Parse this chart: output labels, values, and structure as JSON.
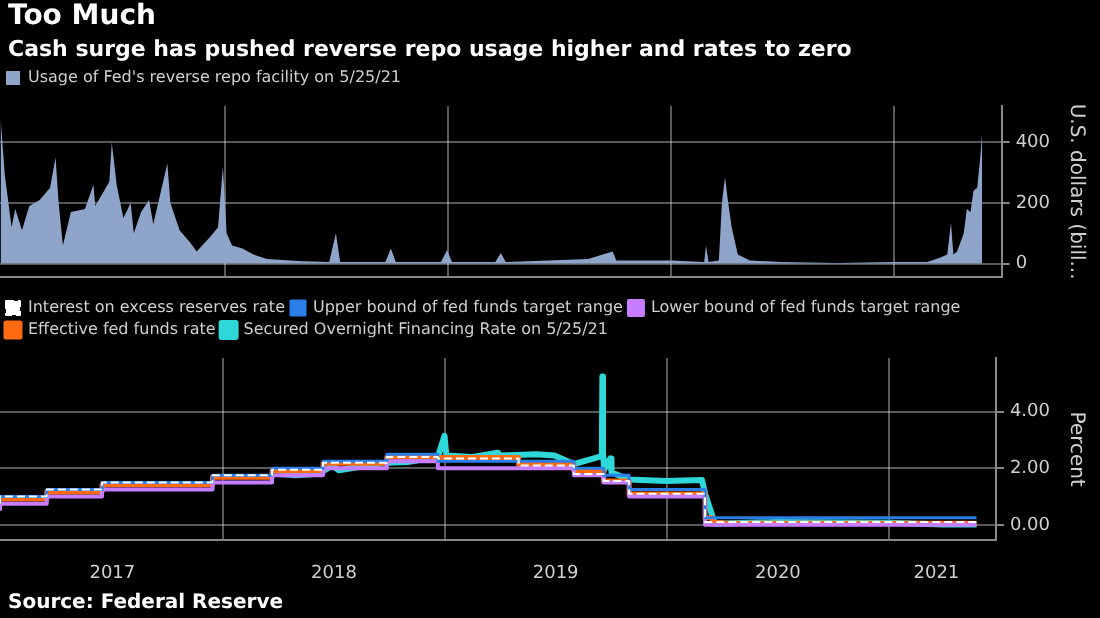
{
  "chart_data": [
    {
      "type": "area",
      "title": "Too Much",
      "subtitle": "Cash surge has pushed reverse repo usage higher and rates to zero",
      "ylabel": "U.S. dollars (bill...",
      "legend": "top left",
      "grid": true,
      "tick_labels": "y",
      "xlim": [
        "2016-12-29",
        "2021-06-26"
      ],
      "xticks": [
        {
          "value": "2018-01-01",
          "label": null
        },
        {
          "value": "2019-01-01",
          "label": null
        },
        {
          "value": "2020-01-01",
          "label": null
        },
        {
          "value": "2021-01-01",
          "label": null
        }
      ],
      "ylim": [
        -45,
        520
      ],
      "yticks": [
        0,
        200,
        400
      ],
      "series": [
        {
          "name": "Usage of Fed's reverse repo facility on 5/25/21",
          "color": "#8ea4c8",
          "x": [
            "2016-12-30",
            "2017-01-06",
            "2017-01-17",
            "2017-01-23",
            "2017-02-03",
            "2017-02-15",
            "2017-03-04",
            "2017-03-21",
            "2017-03-30",
            "2017-04-04",
            "2017-04-11",
            "2017-04-24",
            "2017-05-17",
            "2017-05-31",
            "2017-06-03",
            "2017-06-26",
            "2017-06-30",
            "2017-07-08",
            "2017-07-19",
            "2017-07-31",
            "2017-08-05",
            "2017-08-17",
            "2017-08-30",
            "2017-09-06",
            "2017-09-14",
            "2017-09-29",
            "2017-10-04",
            "2017-10-19",
            "2017-11-05",
            "2017-11-16",
            "2017-12-09",
            "2017-12-21",
            "2017-12-29",
            "2018-01-04",
            "2018-01-13",
            "2018-01-30",
            "2018-02-17",
            "2018-03-11",
            "2018-05-08",
            "2018-06-21",
            "2018-07-02",
            "2018-07-09",
            "2018-09-21",
            "2018-09-30",
            "2018-10-08",
            "2018-12-21",
            "2018-12-31",
            "2019-01-08",
            "2019-03-20",
            "2019-03-29",
            "2019-04-06",
            "2019-08-19",
            "2019-09-28",
            "2019-10-04",
            "2020-01-02",
            "2020-02-25",
            "2020-02-28",
            "2020-03-03",
            "2020-03-20",
            "2020-03-25",
            "2020-03-30",
            "2020-04-03",
            "2020-04-10",
            "2020-04-20",
            "2020-05-10",
            "2020-06-30",
            "2020-09-30",
            "2020-12-31",
            "2021-02-24",
            "2021-03-18",
            "2021-03-29",
            "2021-04-04",
            "2021-04-08",
            "2021-04-14",
            "2021-04-25",
            "2021-04-30",
            "2021-05-06",
            "2021-05-11",
            "2021-05-17",
            "2021-05-22",
            "2021-05-25"
          ],
          "values": [
            480,
            290,
            120,
            180,
            110,
            190,
            210,
            250,
            350,
            200,
            60,
            170,
            180,
            260,
            190,
            270,
            400,
            260,
            150,
            200,
            100,
            170,
            210,
            130,
            200,
            330,
            200,
            110,
            70,
            40,
            90,
            120,
            320,
            100,
            60,
            50,
            30,
            15,
            8,
            5,
            100,
            5,
            5,
            50,
            5,
            5,
            45,
            5,
            5,
            35,
            5,
            15,
            40,
            10,
            10,
            5,
            60,
            5,
            10,
            200,
            285,
            220,
            120,
            30,
            10,
            5,
            2,
            5,
            5,
            20,
            30,
            135,
            30,
            40,
            100,
            180,
            170,
            240,
            250,
            350,
            433
          ]
        }
      ]
    },
    {
      "type": "step",
      "legend": "top left",
      "grid": true,
      "annotations": [
        "Source: Federal Reserve"
      ],
      "ylabel": "Percent",
      "xlim": [
        "2016-12-29",
        "2021-06-26"
      ],
      "xticks": [
        {
          "value": "2017-07-02",
          "label": "2017"
        },
        {
          "value": "2018-01-01",
          "label": null
        },
        {
          "value": "2018-07-02",
          "label": "2018"
        },
        {
          "value": "2019-01-01",
          "label": null
        },
        {
          "value": "2019-07-02",
          "label": "2019"
        },
        {
          "value": "2020-01-01",
          "label": null
        },
        {
          "value": "2020-07-02",
          "label": "2020"
        },
        {
          "value": "2021-01-01",
          "label": null
        },
        {
          "value": "2021-03-20",
          "label": "2021"
        }
      ],
      "ylim": [
        -0.55,
        5.9
      ],
      "yticks": [
        {
          "value": 0,
          "label": "0.00"
        },
        {
          "value": 2,
          "label": "2.00"
        },
        {
          "value": 4,
          "label": "4.00"
        }
      ],
      "series": [
        {
          "name": "Interest on excess reserves rate",
          "color": "#ffffff",
          "line_style": "dashed",
          "x": [
            "2016-12-29",
            "2017-03-16",
            "2017-06-15",
            "2017-12-14",
            "2018-03-22",
            "2018-06-14",
            "2018-09-27",
            "2018-12-20",
            "2019-05-02",
            "2019-08-01",
            "2019-09-19",
            "2019-10-31",
            "2020-03-04",
            "2020-03-16",
            "2021-05-25"
          ],
          "values": [
            0.75,
            1.0,
            1.25,
            1.5,
            1.75,
            1.95,
            2.2,
            2.4,
            2.35,
            2.1,
            1.8,
            1.55,
            1.1,
            0.1,
            0.1
          ]
        },
        {
          "name": "Upper bound of fed funds target range",
          "color": "#2b7fe8",
          "x": [
            "2016-12-29",
            "2017-03-16",
            "2017-06-15",
            "2017-12-14",
            "2018-03-22",
            "2018-06-14",
            "2018-09-27",
            "2018-12-20",
            "2019-08-01",
            "2019-09-19",
            "2019-10-31",
            "2020-03-04",
            "2020-03-16",
            "2021-05-25"
          ],
          "values": [
            0.75,
            1.0,
            1.25,
            1.5,
            1.75,
            2.0,
            2.25,
            2.5,
            2.25,
            2.0,
            1.75,
            1.25,
            0.25,
            0.25
          ]
        },
        {
          "name": "Lower bound of fed funds target range",
          "color": "#c77dff",
          "x": [
            "2016-12-29",
            "2017-03-16",
            "2017-06-15",
            "2017-12-14",
            "2018-03-22",
            "2018-06-14",
            "2018-09-27",
            "2018-12-20",
            "2019-08-01",
            "2019-09-19",
            "2019-10-31",
            "2020-03-04",
            "2020-03-16",
            "2021-05-25"
          ],
          "values": [
            0.5,
            0.75,
            1.0,
            1.25,
            1.5,
            1.75,
            2.0,
            2.25,
            2.0,
            1.75,
            1.5,
            1.0,
            0.0,
            0.0
          ]
        },
        {
          "name": "Effective fed funds rate",
          "color": "#ff6a13",
          "x": [
            "2016-12-29",
            "2017-03-16",
            "2017-06-15",
            "2017-12-14",
            "2018-03-22",
            "2018-06-14",
            "2018-09-27",
            "2018-12-20",
            "2019-05-02",
            "2019-08-01",
            "2019-09-19",
            "2019-10-31",
            "2020-03-04",
            "2020-03-16",
            "2020-04-01",
            "2021-05-25"
          ],
          "values": [
            0.66,
            0.91,
            1.16,
            1.42,
            1.68,
            1.91,
            2.18,
            2.4,
            2.38,
            2.13,
            1.9,
            1.55,
            1.09,
            0.25,
            0.08,
            0.06
          ]
        },
        {
          "name": "Secured Overnight Financing Rate on 5/25/21",
          "type": "line",
          "color": "#2fd8d8",
          "x": [
            "2018-04-03",
            "2018-04-30",
            "2018-05-31",
            "2018-06-14",
            "2018-06-29",
            "2018-07-10",
            "2018-09-27",
            "2018-10-31",
            "2018-12-20",
            "2018-12-31",
            "2019-01-03",
            "2019-02-15",
            "2019-03-29",
            "2019-04-01",
            "2019-05-31",
            "2019-06-30",
            "2019-08-01",
            "2019-09-16",
            "2019-09-17",
            "2019-09-18",
            "2019-09-20",
            "2019-09-30",
            "2019-10-02",
            "2019-10-31",
            "2019-12-31",
            "2020-02-28",
            "2020-03-04",
            "2020-03-17",
            "2020-03-20",
            "2020-06-30",
            "2020-12-31",
            "2021-03-31",
            "2021-05-25"
          ],
          "values": [
            1.8,
            1.75,
            1.8,
            1.9,
            2.1,
            1.93,
            2.2,
            2.22,
            2.4,
            3.15,
            2.45,
            2.4,
            2.55,
            2.45,
            2.5,
            2.45,
            2.15,
            2.43,
            5.25,
            2.55,
            1.95,
            2.35,
            1.85,
            1.6,
            1.55,
            1.59,
            1.1,
            0.26,
            0.04,
            0.1,
            0.07,
            0.01,
            0.01
          ]
        }
      ]
    }
  ]
}
